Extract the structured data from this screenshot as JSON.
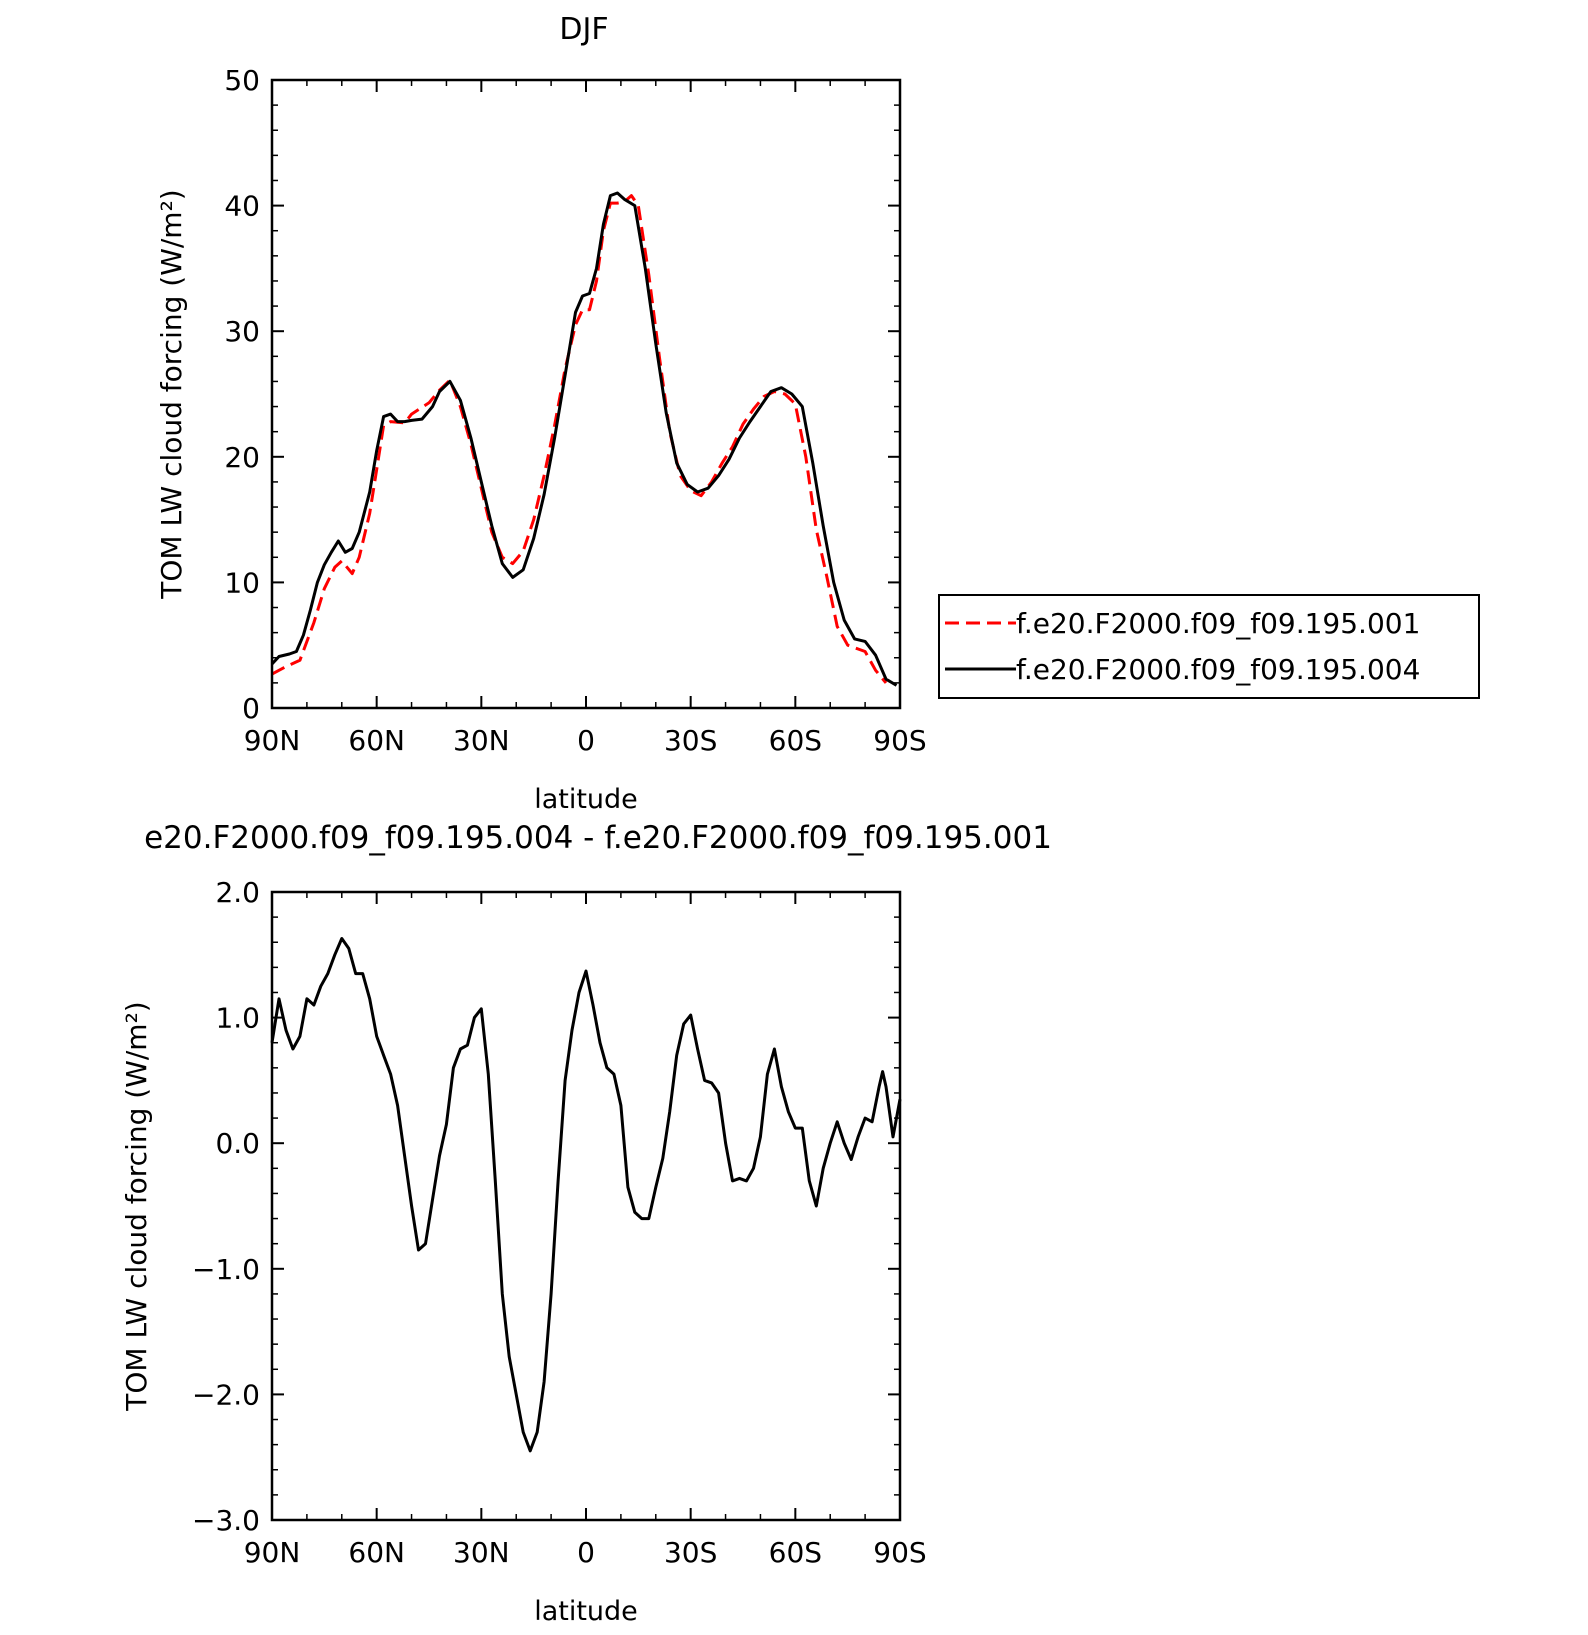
{
  "chart_data": [
    {
      "type": "line",
      "title": "DJF",
      "xlabel": "latitude",
      "ylabel": "TOM LW cloud forcing (W/m²)",
      "xlim": [
        90,
        -90
      ],
      "x_tick_values": [
        90,
        60,
        30,
        0,
        -30,
        -60,
        -90
      ],
      "x_tick_labels": [
        "90N",
        "60N",
        "30N",
        "0",
        "30S",
        "60S",
        "90S"
      ],
      "ylim": [
        0,
        50
      ],
      "y_tick_values": [
        0,
        10,
        20,
        30,
        40,
        50
      ],
      "y_tick_labels": [
        "0",
        "10",
        "20",
        "30",
        "40",
        "50"
      ],
      "legend_position": "right",
      "series": [
        {
          "name": "f.e20.F2000.f09_f09.195.001",
          "color": "#ff0000",
          "dash": "dashed",
          "points": [
            [
              90,
              2.7
            ],
            [
              86,
              3.3
            ],
            [
              82,
              3.8
            ],
            [
              78,
              6.8
            ],
            [
              75,
              9.5
            ],
            [
              72,
              11.2
            ],
            [
              70,
              11.7
            ],
            [
              67,
              10.7
            ],
            [
              65,
              12
            ],
            [
              62,
              15.5
            ],
            [
              60,
              19
            ],
            [
              58,
              22.5
            ],
            [
              56,
              22.8
            ],
            [
              52,
              22.7
            ],
            [
              50,
              23.4
            ],
            [
              45,
              24.3
            ],
            [
              42,
              25.3
            ],
            [
              39,
              26.1
            ],
            [
              36,
              24
            ],
            [
              33,
              21
            ],
            [
              30,
              17.5
            ],
            [
              27,
              14
            ],
            [
              24,
              12
            ],
            [
              21,
              11.5
            ],
            [
              18,
              12.5
            ],
            [
              15,
              15
            ],
            [
              12,
              18.5
            ],
            [
              9,
              22.5
            ],
            [
              6,
              27
            ],
            [
              3,
              30.5
            ],
            [
              1,
              31.7
            ],
            [
              -1,
              31.7
            ],
            [
              -3,
              34
            ],
            [
              -5,
              38
            ],
            [
              -7,
              40.2
            ],
            [
              -9,
              40.2
            ],
            [
              -11,
              40.3
            ],
            [
              -13,
              40.8
            ],
            [
              -15,
              40
            ],
            [
              -18,
              34.5
            ],
            [
              -21,
              28
            ],
            [
              -24,
              22
            ],
            [
              -27,
              18.5
            ],
            [
              -30,
              17.3
            ],
            [
              -33,
              16.9
            ],
            [
              -36,
              18
            ],
            [
              -39,
              19.5
            ],
            [
              -42,
              20.8
            ],
            [
              -45,
              22.6
            ],
            [
              -48,
              23.8
            ],
            [
              -51,
              24.8
            ],
            [
              -54,
              25.2
            ],
            [
              -57,
              25
            ],
            [
              -60,
              24.2
            ],
            [
              -63,
              20
            ],
            [
              -66,
              14.2
            ],
            [
              -69,
              10.5
            ],
            [
              -72,
              6.5
            ],
            [
              -75,
              5
            ],
            [
              -78,
              4.7
            ],
            [
              -80,
              4.5
            ],
            [
              -83,
              3
            ],
            [
              -86,
              2
            ]
          ]
        },
        {
          "name": "f.e20.F2000.f09_f09.195.004",
          "color": "#000000",
          "dash": "solid",
          "points": [
            [
              90,
              3.5
            ],
            [
              88,
              4.1
            ],
            [
              85,
              4.3
            ],
            [
              83,
              4.5
            ],
            [
              81,
              5.8
            ],
            [
              79,
              7.8
            ],
            [
              77,
              10
            ],
            [
              75,
              11.4
            ],
            [
              73,
              12.4
            ],
            [
              71,
              13.3
            ],
            [
              69,
              12.4
            ],
            [
              67,
              12.7
            ],
            [
              65,
              14
            ],
            [
              62,
              17.2
            ],
            [
              60,
              20.5
            ],
            [
              58,
              23.2
            ],
            [
              56,
              23.4
            ],
            [
              54,
              22.8
            ],
            [
              52,
              22.8
            ],
            [
              50,
              22.9
            ],
            [
              47,
              23
            ],
            [
              44,
              24
            ],
            [
              42,
              25.2
            ],
            [
              39,
              26
            ],
            [
              36,
              24.5
            ],
            [
              33,
              21.5
            ],
            [
              30,
              18
            ],
            [
              27,
              14.5
            ],
            [
              24,
              11.5
            ],
            [
              21,
              10.4
            ],
            [
              18,
              11
            ],
            [
              15,
              13.5
            ],
            [
              12,
              17
            ],
            [
              9,
              21.5
            ],
            [
              6,
              26.5
            ],
            [
              3,
              31.5
            ],
            [
              1,
              32.8
            ],
            [
              -1,
              33
            ],
            [
              -3,
              35
            ],
            [
              -5,
              38.5
            ],
            [
              -7,
              40.8
            ],
            [
              -9,
              41
            ],
            [
              -11,
              40.5
            ],
            [
              -14,
              40
            ],
            [
              -17,
              35
            ],
            [
              -20,
              29
            ],
            [
              -23,
              23.5
            ],
            [
              -26,
              19.5
            ],
            [
              -29,
              17.8
            ],
            [
              -32,
              17.2
            ],
            [
              -35,
              17.5
            ],
            [
              -38,
              18.5
            ],
            [
              -41,
              19.8
            ],
            [
              -44,
              21.5
            ],
            [
              -47,
              22.8
            ],
            [
              -50,
              24
            ],
            [
              -53,
              25.2
            ],
            [
              -56,
              25.5
            ],
            [
              -59,
              25
            ],
            [
              -62,
              24
            ],
            [
              -65,
              19.5
            ],
            [
              -68,
              14.5
            ],
            [
              -71,
              10
            ],
            [
              -74,
              7
            ],
            [
              -77,
              5.5
            ],
            [
              -80,
              5.3
            ],
            [
              -83,
              4.2
            ],
            [
              -86,
              2.3
            ],
            [
              -89,
              1.8
            ]
          ]
        }
      ]
    },
    {
      "type": "line",
      "title": "e20.F2000.f09_f09.195.004 - f.e20.F2000.f09_f09.195.001",
      "xlabel": "latitude",
      "ylabel": "TOM LW cloud forcing (W/m²)",
      "xlim": [
        90,
        -90
      ],
      "x_tick_values": [
        90,
        60,
        30,
        0,
        -30,
        -60,
        -90
      ],
      "x_tick_labels": [
        "90N",
        "60N",
        "30N",
        "0",
        "30S",
        "60S",
        "90S"
      ],
      "ylim": [
        -3,
        2
      ],
      "y_tick_values": [
        -3,
        -2,
        -1,
        0,
        1,
        2
      ],
      "y_tick_labels": [
        "−3.0",
        "−2.0",
        "−1.0",
        "0.0",
        "1.0",
        "2.0"
      ],
      "series": [
        {
          "color": "#000000",
          "dash": "solid",
          "points": [
            [
              90,
              0.8
            ],
            [
              88,
              1.15
            ],
            [
              86,
              0.9
            ],
            [
              84,
              0.75
            ],
            [
              82,
              0.85
            ],
            [
              80,
              1.15
            ],
            [
              78,
              1.1
            ],
            [
              76,
              1.25
            ],
            [
              74,
              1.35
            ],
            [
              72,
              1.5
            ],
            [
              70,
              1.63
            ],
            [
              68,
              1.55
            ],
            [
              66,
              1.35
            ],
            [
              64,
              1.35
            ],
            [
              62,
              1.15
            ],
            [
              60,
              0.85
            ],
            [
              58,
              0.7
            ],
            [
              56,
              0.55
            ],
            [
              54,
              0.3
            ],
            [
              52,
              -0.1
            ],
            [
              50,
              -0.5
            ],
            [
              48,
              -0.85
            ],
            [
              46,
              -0.8
            ],
            [
              44,
              -0.45
            ],
            [
              42,
              -0.1
            ],
            [
              40,
              0.15
            ],
            [
              38,
              0.6
            ],
            [
              36,
              0.75
            ],
            [
              34,
              0.78
            ],
            [
              32,
              1.0
            ],
            [
              30,
              1.07
            ],
            [
              28,
              0.55
            ],
            [
              26,
              -0.3
            ],
            [
              24,
              -1.2
            ],
            [
              22,
              -1.7
            ],
            [
              20,
              -2.0
            ],
            [
              18,
              -2.3
            ],
            [
              16,
              -2.45
            ],
            [
              14,
              -2.3
            ],
            [
              12,
              -1.9
            ],
            [
              10,
              -1.2
            ],
            [
              8,
              -0.3
            ],
            [
              6,
              0.5
            ],
            [
              4,
              0.9
            ],
            [
              2,
              1.2
            ],
            [
              0,
              1.37
            ],
            [
              -2,
              1.1
            ],
            [
              -4,
              0.8
            ],
            [
              -6,
              0.6
            ],
            [
              -8,
              0.55
            ],
            [
              -10,
              0.3
            ],
            [
              -12,
              -0.35
            ],
            [
              -14,
              -0.55
            ],
            [
              -16,
              -0.6
            ],
            [
              -18,
              -0.6
            ],
            [
              -20,
              -0.35
            ],
            [
              -22,
              -0.12
            ],
            [
              -24,
              0.25
            ],
            [
              -26,
              0.7
            ],
            [
              -28,
              0.95
            ],
            [
              -30,
              1.02
            ],
            [
              -32,
              0.75
            ],
            [
              -34,
              0.5
            ],
            [
              -36,
              0.48
            ],
            [
              -38,
              0.4
            ],
            [
              -40,
              0.0
            ],
            [
              -42,
              -0.3
            ],
            [
              -44,
              -0.28
            ],
            [
              -46,
              -0.3
            ],
            [
              -48,
              -0.2
            ],
            [
              -50,
              0.05
            ],
            [
              -52,
              0.55
            ],
            [
              -54,
              0.75
            ],
            [
              -56,
              0.45
            ],
            [
              -58,
              0.25
            ],
            [
              -60,
              0.12
            ],
            [
              -62,
              0.12
            ],
            [
              -64,
              -0.3
            ],
            [
              -66,
              -0.5
            ],
            [
              -68,
              -0.2
            ],
            [
              -70,
              0.0
            ],
            [
              -72,
              0.17
            ],
            [
              -74,
              0.0
            ],
            [
              -76,
              -0.13
            ],
            [
              -78,
              0.05
            ],
            [
              -80,
              0.2
            ],
            [
              -82,
              0.17
            ],
            [
              -84,
              0.45
            ],
            [
              -85,
              0.57
            ],
            [
              -86,
              0.45
            ],
            [
              -88,
              0.05
            ],
            [
              -90,
              0.35
            ]
          ]
        }
      ]
    }
  ]
}
